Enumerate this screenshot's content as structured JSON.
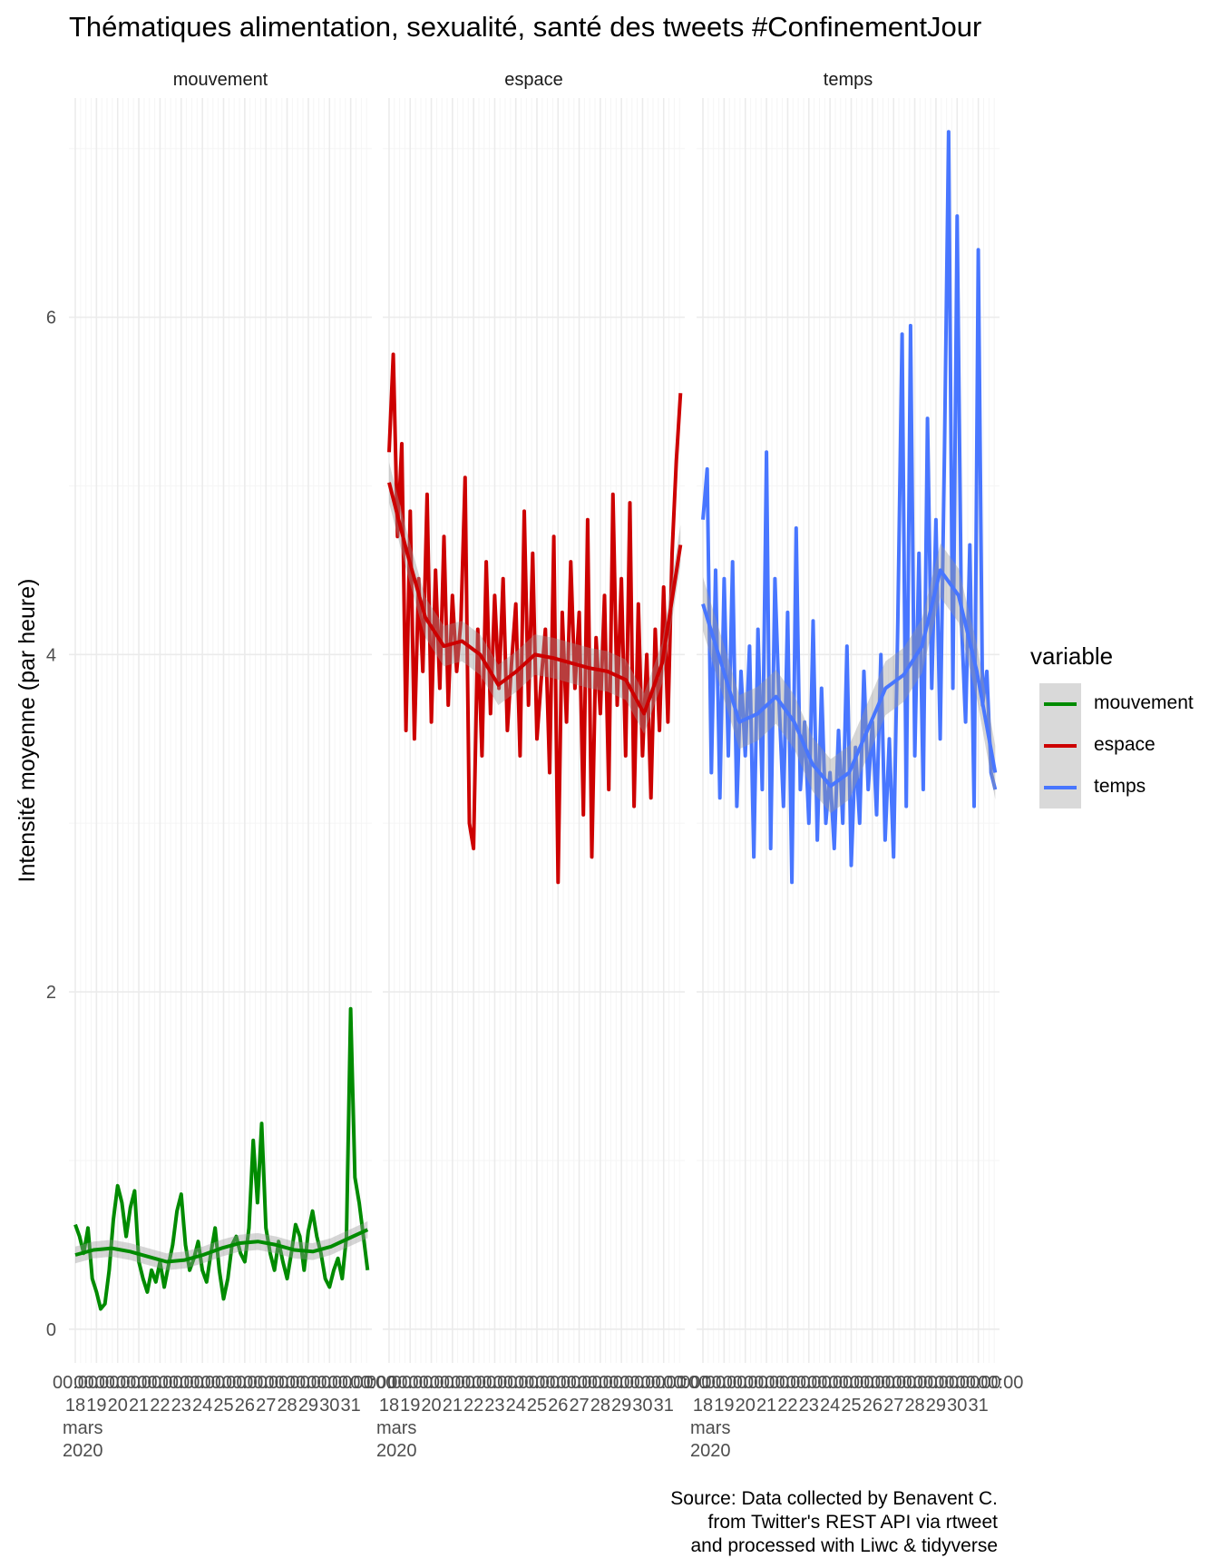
{
  "chart_data": {
    "type": "line",
    "title": "Thématiques alimentation, sexualité, santé des tweets #ConfinementJour",
    "xlabel": "",
    "ylabel": "Intensité moyenne (par heure)",
    "ylim": [
      -0.2,
      7.3
    ],
    "y_ticks": [
      0,
      2,
      4,
      6
    ],
    "xlim": [
      17.7,
      32.0
    ],
    "x_tick_values": [
      18,
      19,
      20,
      21,
      22,
      23,
      24,
      25,
      26,
      27,
      28,
      29,
      30,
      31
    ],
    "x_tick_labels": [
      "00:00\n18\nmars\n2020",
      "00:00\n19",
      "00:00\n20",
      "00:00\n21",
      "00:00\n22",
      "00:00\n23",
      "00:00\n24",
      "00:00\n25",
      "00:00\n26",
      "00:00\n27",
      "00:00\n28",
      "00:00\n29",
      "00:00\n30",
      "00:00\n31"
    ],
    "x_tick_text": {
      "first_tick_lines": [
        "00:00",
        "18",
        "mars",
        "2020"
      ],
      "other_tick_lines": [
        [
          "00:00",
          "19"
        ],
        [
          "00:00",
          "20"
        ],
        [
          "00:00",
          "21"
        ],
        [
          "00:00",
          "22"
        ],
        [
          "00:00",
          "23"
        ],
        [
          "00:00",
          "24"
        ],
        [
          "00:00",
          "25"
        ],
        [
          "00:00",
          "26"
        ],
        [
          "00:00",
          "27"
        ],
        [
          "00:00",
          "28"
        ],
        [
          "00:00",
          "29"
        ],
        [
          "00:00",
          "30"
        ],
        [
          "00:00",
          "31"
        ]
      ],
      "last_tick": "00:00"
    },
    "x_tick_extra": [
      "00:00"
    ],
    "grid": true,
    "facets": [
      "mouvement",
      "espace",
      "temps"
    ],
    "legend": {
      "title": "variable",
      "position": "right",
      "entries": [
        "mouvement",
        "espace",
        "temps"
      ]
    },
    "series": [
      {
        "name": "mouvement",
        "color": "#008B00",
        "x": [
          18.0,
          18.2,
          18.4,
          18.6,
          18.8,
          19.0,
          19.2,
          19.4,
          19.6,
          19.8,
          20.0,
          20.2,
          20.4,
          20.6,
          20.8,
          21.0,
          21.2,
          21.4,
          21.6,
          21.8,
          22.0,
          22.2,
          22.4,
          22.6,
          22.8,
          23.0,
          23.2,
          23.4,
          23.6,
          23.8,
          24.0,
          24.2,
          24.4,
          24.6,
          24.8,
          25.0,
          25.2,
          25.4,
          25.6,
          25.8,
          26.0,
          26.2,
          26.4,
          26.6,
          26.8,
          27.0,
          27.2,
          27.4,
          27.6,
          27.8,
          28.0,
          28.2,
          28.4,
          28.6,
          28.8,
          29.0,
          29.2,
          29.4,
          29.6,
          29.8,
          30.0,
          30.2,
          30.4,
          30.6,
          30.8,
          31.0,
          31.2,
          31.4,
          31.6,
          31.8
        ],
        "y": [
          0.62,
          0.55,
          0.45,
          0.6,
          0.3,
          0.22,
          0.12,
          0.15,
          0.35,
          0.65,
          0.85,
          0.75,
          0.55,
          0.72,
          0.82,
          0.4,
          0.3,
          0.22,
          0.35,
          0.28,
          0.4,
          0.25,
          0.38,
          0.5,
          0.7,
          0.8,
          0.5,
          0.35,
          0.42,
          0.52,
          0.35,
          0.28,
          0.45,
          0.6,
          0.35,
          0.18,
          0.3,
          0.5,
          0.55,
          0.45,
          0.4,
          0.6,
          1.12,
          0.75,
          1.22,
          0.6,
          0.45,
          0.35,
          0.52,
          0.4,
          0.3,
          0.45,
          0.62,
          0.55,
          0.35,
          0.58,
          0.7,
          0.55,
          0.45,
          0.3,
          0.25,
          0.35,
          0.42,
          0.3,
          0.55,
          1.9,
          0.9,
          0.75,
          0.55,
          0.35
        ],
        "smooth": [
          0.44,
          0.47,
          0.48,
          0.46,
          0.43,
          0.4,
          0.41,
          0.44,
          0.48,
          0.51,
          0.52,
          0.5,
          0.47,
          0.46,
          0.49,
          0.54,
          0.59
        ],
        "smooth_band": 0.05
      },
      {
        "name": "espace",
        "color": "#CD0000",
        "x": [
          18.0,
          18.2,
          18.4,
          18.6,
          18.8,
          19.0,
          19.2,
          19.4,
          19.6,
          19.8,
          20.0,
          20.2,
          20.4,
          20.6,
          20.8,
          21.0,
          21.2,
          21.4,
          21.6,
          21.8,
          22.0,
          22.2,
          22.4,
          22.6,
          22.8,
          23.0,
          23.2,
          23.4,
          23.6,
          23.8,
          24.0,
          24.2,
          24.4,
          24.6,
          24.8,
          25.0,
          25.2,
          25.4,
          25.6,
          25.8,
          26.0,
          26.2,
          26.4,
          26.6,
          26.8,
          27.0,
          27.2,
          27.4,
          27.6,
          27.8,
          28.0,
          28.2,
          28.4,
          28.6,
          28.8,
          29.0,
          29.2,
          29.4,
          29.6,
          29.8,
          30.0,
          30.2,
          30.4,
          30.6,
          30.8,
          31.0,
          31.2,
          31.4,
          31.6,
          31.8
        ],
        "y": [
          5.2,
          5.78,
          4.7,
          5.25,
          3.55,
          4.85,
          3.5,
          4.45,
          3.9,
          4.95,
          3.6,
          4.5,
          3.8,
          4.7,
          3.7,
          4.35,
          3.9,
          4.2,
          5.05,
          3.0,
          2.85,
          4.15,
          3.4,
          4.55,
          3.65,
          4.35,
          3.8,
          4.45,
          3.55,
          3.95,
          4.3,
          3.4,
          4.85,
          3.7,
          4.6,
          3.5,
          3.85,
          4.15,
          3.3,
          4.7,
          2.65,
          4.25,
          3.6,
          4.55,
          3.8,
          4.25,
          3.05,
          4.8,
          2.8,
          4.1,
          3.65,
          4.35,
          3.2,
          4.95,
          3.7,
          4.45,
          3.4,
          4.9,
          3.1,
          4.3,
          3.4,
          4.0,
          3.15,
          4.15,
          3.55,
          4.4,
          3.6,
          4.6,
          5.15,
          5.55
        ],
        "smooth": [
          5.02,
          4.6,
          4.22,
          4.05,
          4.08,
          4.0,
          3.82,
          3.9,
          4.0,
          3.98,
          3.95,
          3.92,
          3.9,
          3.85,
          3.65,
          3.95,
          4.65
        ],
        "smooth_band": 0.12
      },
      {
        "name": "temps",
        "color": "#4876FF",
        "x": [
          18.0,
          18.2,
          18.4,
          18.6,
          18.8,
          19.0,
          19.2,
          19.4,
          19.6,
          19.8,
          20.0,
          20.2,
          20.4,
          20.6,
          20.8,
          21.0,
          21.2,
          21.4,
          21.6,
          21.8,
          22.0,
          22.2,
          22.4,
          22.6,
          22.8,
          23.0,
          23.2,
          23.4,
          23.6,
          23.8,
          24.0,
          24.2,
          24.4,
          24.6,
          24.8,
          25.0,
          25.2,
          25.4,
          25.6,
          25.8,
          26.0,
          26.2,
          26.4,
          26.6,
          26.8,
          27.0,
          27.2,
          27.4,
          27.6,
          27.8,
          28.0,
          28.2,
          28.4,
          28.6,
          28.8,
          29.0,
          29.2,
          29.4,
          29.6,
          29.8,
          30.0,
          30.2,
          30.4,
          30.6,
          30.8,
          31.0,
          31.2,
          31.4,
          31.6,
          31.8
        ],
        "y": [
          4.8,
          5.1,
          3.3,
          4.5,
          3.15,
          4.45,
          3.4,
          4.55,
          3.1,
          3.9,
          3.4,
          4.05,
          2.8,
          4.15,
          3.2,
          5.2,
          2.85,
          4.45,
          3.7,
          3.1,
          4.25,
          2.65,
          4.75,
          3.2,
          3.6,
          3.0,
          4.2,
          2.9,
          3.8,
          3.0,
          3.3,
          2.85,
          3.55,
          3.0,
          4.05,
          2.75,
          3.45,
          3.0,
          3.9,
          3.2,
          3.6,
          3.05,
          4.0,
          2.9,
          3.5,
          2.8,
          4.2,
          5.9,
          3.1,
          5.95,
          3.4,
          4.6,
          3.2,
          5.4,
          3.8,
          4.8,
          3.5,
          5.2,
          7.1,
          3.8,
          6.6,
          4.2,
          3.6,
          4.65,
          3.1,
          6.4,
          3.7,
          3.9,
          3.3,
          3.2
        ],
        "smooth": [
          4.3,
          3.95,
          3.6,
          3.65,
          3.75,
          3.6,
          3.35,
          3.22,
          3.3,
          3.55,
          3.8,
          3.88,
          4.05,
          4.5,
          4.35,
          3.9,
          3.3
        ],
        "smooth_band": 0.16
      }
    ],
    "smooth_x": [
      18.0,
      18.86,
      19.72,
      20.59,
      21.45,
      22.31,
      23.17,
      24.03,
      24.9,
      25.76,
      26.62,
      27.48,
      28.34,
      29.21,
      30.07,
      30.93,
      31.8
    ]
  },
  "caption": [
    "Source: Data collected by Benavent C.",
    "from Twitter's REST API via rtweet",
    "and processed with Liwc & tidyverse"
  ],
  "colors": {
    "grid_major": "#EBEBEB",
    "grid_minor": "#F5F5F5",
    "band": "#999999",
    "legend_key_bg": "#D9D9D9",
    "axis_text": "#4D4D4D"
  }
}
